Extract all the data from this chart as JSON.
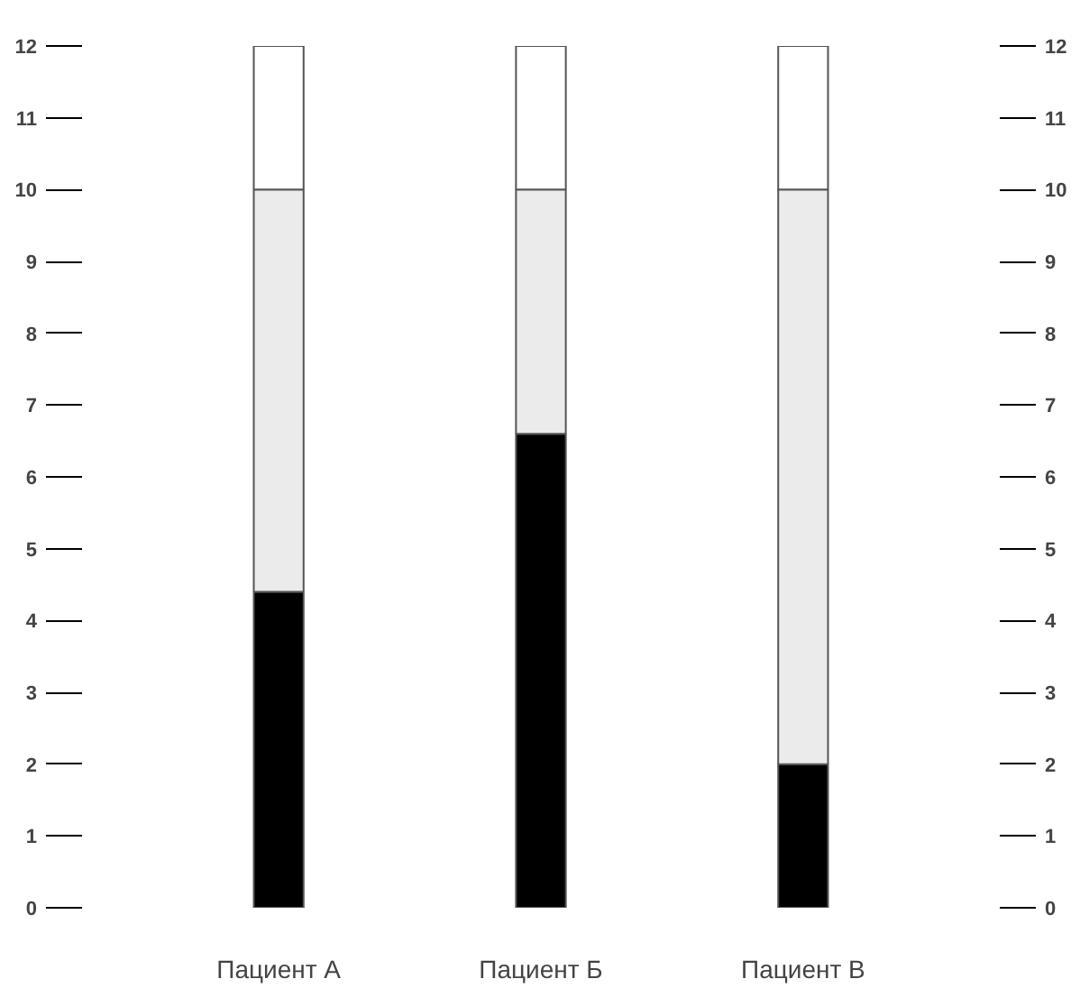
{
  "chart_data": {
    "type": "bar",
    "stacked": true,
    "categories": [
      "Пациент А",
      "Пациент Б",
      "Пациент В"
    ],
    "series": [
      {
        "color": "#000000",
        "values": [
          4.4,
          6.6,
          2.0
        ]
      },
      {
        "color": "#ebebeb",
        "values": [
          5.6,
          3.4,
          8.0
        ]
      },
      {
        "color": "#ffffff",
        "values": [
          2,
          2,
          2
        ]
      }
    ],
    "ylim": [
      0,
      12
    ],
    "yticks": [
      0,
      1,
      2,
      3,
      4,
      5,
      6,
      7,
      8,
      9,
      10,
      11,
      12
    ],
    "y2lim": [
      0,
      12
    ],
    "y2ticks": [
      0,
      1,
      2,
      3,
      4,
      5,
      6,
      7,
      8,
      9,
      10,
      11,
      12
    ],
    "grid": false
  }
}
